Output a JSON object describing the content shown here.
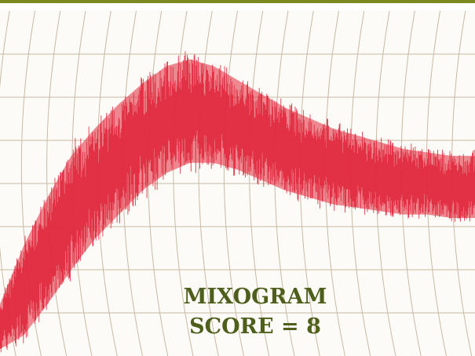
{
  "caption": {
    "line1": "MIXOGRAM",
    "line2": "SCORE = 8"
  },
  "colors": {
    "accent_bar": "#7a8a1e",
    "trace": "#e0283c",
    "grid": "#c9b9a6",
    "caption": "#4e5f1c"
  },
  "chart_data": {
    "type": "area",
    "title": "",
    "xlabel": "",
    "ylabel": "",
    "grid": true,
    "xlim": [
      0,
      10
    ],
    "ylim": [
      0,
      10
    ],
    "series": [
      {
        "x": [
          0,
          0.5,
          1,
          1.5,
          2,
          2.5,
          3,
          3.5,
          4,
          4.5,
          5,
          5.5,
          6,
          6.5,
          7,
          7.5,
          8,
          8.5,
          9,
          9.5,
          10
        ],
        "upper": [
          1.5,
          3.2,
          4.6,
          5.8,
          6.6,
          7.3,
          7.9,
          8.4,
          8.6,
          8.4,
          8.0,
          7.6,
          7.2,
          6.9,
          6.6,
          6.4,
          6.2,
          6.0,
          5.9,
          5.8,
          5.8
        ],
        "lower": [
          0.2,
          0.6,
          1.5,
          2.5,
          3.4,
          4.1,
          4.8,
          5.3,
          5.6,
          5.6,
          5.4,
          5.1,
          4.8,
          4.6,
          4.4,
          4.3,
          4.2,
          4.1,
          4.1,
          4.0,
          4.0
        ]
      }
    ]
  }
}
